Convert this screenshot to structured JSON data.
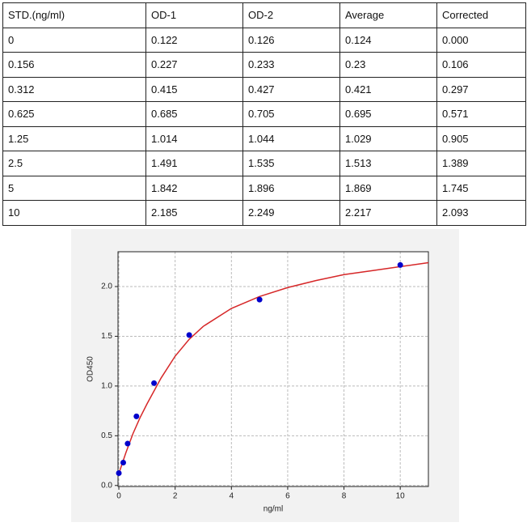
{
  "table": {
    "header": [
      "STD.(ng/ml)",
      "OD-1",
      "OD-2",
      "Average",
      "Corrected"
    ],
    "rows": [
      [
        "0",
        "0.122",
        "0.126",
        "0.124",
        "0.000"
      ],
      [
        "0.156",
        "0.227",
        "0.233",
        "0.23",
        "0.106"
      ],
      [
        "0.312",
        "0.415",
        "0.427",
        "0.421",
        "0.297"
      ],
      [
        "0.625",
        "0.685",
        "0.705",
        "0.695",
        "0.571"
      ],
      [
        "1.25",
        "1.014",
        "1.044",
        "1.029",
        "0.905"
      ],
      [
        "2.5",
        "1.491",
        "1.535",
        "1.513",
        "1.389"
      ],
      [
        "5",
        "1.842",
        "1.896",
        "1.869",
        "1.745"
      ],
      [
        "10",
        "2.185",
        "2.249",
        "2.217",
        "2.093"
      ]
    ]
  },
  "chart_data": {
    "type": "scatter",
    "xlabel": "ng/ml",
    "ylabel": "OD450",
    "series": [
      {
        "type": "scatter",
        "color": "#0000cc",
        "x": [
          0,
          0.156,
          0.312,
          0.625,
          1.25,
          2.5,
          5,
          10
        ],
        "values": [
          0.124,
          0.23,
          0.421,
          0.695,
          1.029,
          1.513,
          1.869,
          2.217
        ]
      },
      {
        "type": "line",
        "color": "#d62728",
        "x": [
          0,
          0.25,
          0.5,
          0.75,
          1,
          1.5,
          2,
          2.5,
          3,
          4,
          5,
          6,
          7,
          8,
          9,
          10,
          11
        ],
        "values": [
          0.12,
          0.33,
          0.52,
          0.68,
          0.82,
          1.08,
          1.3,
          1.47,
          1.6,
          1.78,
          1.9,
          1.99,
          2.06,
          2.12,
          2.16,
          2.2,
          2.24
        ]
      }
    ],
    "xlim": [
      -0.03,
      11
    ],
    "ylim": [
      -0.01,
      2.35
    ],
    "xticks": [
      0,
      2,
      4,
      6,
      8,
      10
    ],
    "yticks": [
      {
        "value": 0,
        "label": "0.0"
      },
      {
        "value": 0.5,
        "label": "0.5"
      },
      {
        "value": 1,
        "label": "1.0"
      },
      {
        "value": 1.5,
        "label": "1.5"
      },
      {
        "value": 2,
        "label": "2.0"
      }
    ],
    "grid": true
  }
}
